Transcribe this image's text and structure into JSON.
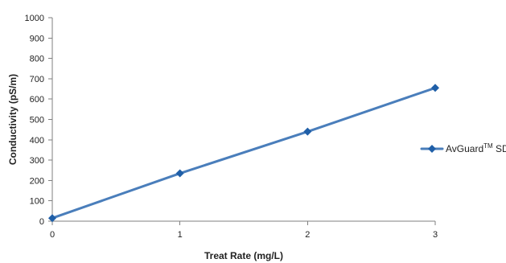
{
  "chart_data": {
    "type": "line",
    "title": "",
    "xlabel": "Treat Rate (mg/L)",
    "ylabel": "Conductivity (pS/m)",
    "x": [
      0,
      1,
      2,
      3
    ],
    "xlim": [
      0,
      3
    ],
    "ylim": [
      0,
      1000
    ],
    "x_ticks": [
      "0",
      "1",
      "2",
      "3"
    ],
    "y_ticks": [
      "0",
      "100",
      "200",
      "300",
      "400",
      "500",
      "600",
      "700",
      "800",
      "900",
      "1000"
    ],
    "grid": false,
    "legend_position": "right",
    "series": [
      {
        "name": "AvGuard",
        "name_superscript": "TM",
        "name_suffix": " SDA",
        "values": [
          15,
          235,
          440,
          655
        ],
        "color": "#4a7ebb",
        "marker": "diamond",
        "marker_color": "#1f5fa8"
      }
    ]
  }
}
